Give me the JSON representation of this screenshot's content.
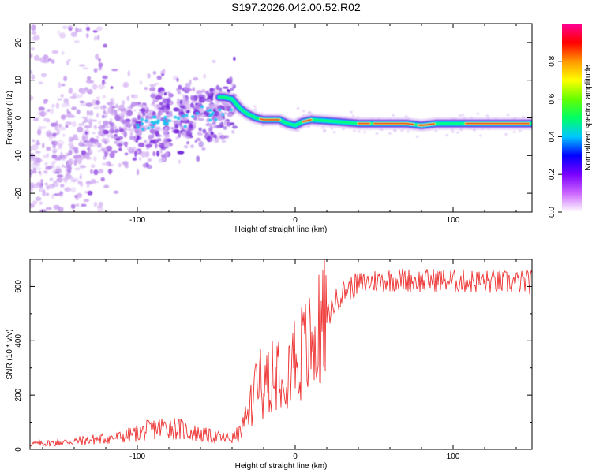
{
  "figure": {
    "title": "S197.2026.042.00.52.R02"
  },
  "chart_data": [
    {
      "type": "heatmap",
      "name": "spectrogram",
      "xlabel": "Height of straight line (km)",
      "ylabel": "Frequency (Hz)",
      "xlim": [
        -168,
        150
      ],
      "ylim": [
        -25,
        25
      ],
      "xticks": [
        -100,
        0,
        100
      ],
      "xtick_labels": [
        "-100",
        "0",
        "100"
      ],
      "yticks": [
        -20,
        -10,
        0,
        10,
        20
      ],
      "ytick_labels": [
        "-20",
        "-10",
        "0",
        "10",
        "20"
      ],
      "ridge_x": [
        -45,
        -40,
        -35,
        -30,
        -25,
        -20,
        -15,
        -10,
        -5,
        0,
        5,
        10,
        20,
        40,
        50,
        60,
        70,
        80,
        90,
        100,
        110,
        120,
        130,
        140,
        150
      ],
      "ridge_y": [
        5.5,
        5,
        2.5,
        1,
        0,
        -0.5,
        -0.5,
        -0.5,
        -1.5,
        -2,
        -1,
        -0.5,
        -0.8,
        -1.5,
        -1.5,
        -1.5,
        -1.5,
        -2,
        -1.5,
        -1.5,
        -1.5,
        -1.5,
        -1.5,
        -1.5,
        -1.5
      ],
      "colorbar": {
        "label": "Normalized spectral amplitude",
        "range": [
          0,
          1
        ],
        "ticks": [
          0.0,
          0.2,
          0.4,
          0.6,
          0.8
        ],
        "tick_labels": [
          "0.0",
          "0.2",
          "0.4",
          "0.6",
          "0.8"
        ],
        "colors": [
          "#ffffff",
          "#cc66ff",
          "#7a00ff",
          "#0000ff",
          "#00c8ff",
          "#00ff64",
          "#64ff00",
          "#ffff00",
          "#ff9600",
          "#ff0000",
          "#ff0096"
        ]
      }
    },
    {
      "type": "line",
      "name": "snr",
      "xlabel": "Height of straight line (km)",
      "ylabel": "SNR (10 * v/v)",
      "xlim": [
        -168,
        150
      ],
      "ylim": [
        0,
        700
      ],
      "xticks": [
        -100,
        0,
        100
      ],
      "xtick_labels": [
        "-100",
        "0",
        "100"
      ],
      "yticks": [
        0,
        200,
        400,
        600
      ],
      "ytick_labels": [
        "0",
        "200",
        "400",
        "600"
      ],
      "color": "#ee3333",
      "envelope": {
        "x": [
          -168,
          -150,
          -130,
          -110,
          -100,
          -90,
          -80,
          -70,
          -60,
          -50,
          -40,
          -35,
          -30,
          -28,
          -25,
          -22,
          -20,
          -15,
          -10,
          -5,
          0,
          5,
          10,
          15,
          20,
          25,
          30,
          40,
          50,
          60,
          70,
          80,
          90,
          100,
          110,
          120,
          130,
          140,
          150
        ],
        "y": [
          20,
          25,
          35,
          45,
          60,
          75,
          85,
          70,
          55,
          45,
          40,
          60,
          120,
          180,
          240,
          280,
          260,
          300,
          320,
          330,
          340,
          360,
          380,
          420,
          480,
          540,
          580,
          610,
          620,
          625,
          625,
          620,
          625,
          620,
          620,
          618,
          615,
          615,
          615
        ]
      }
    }
  ]
}
